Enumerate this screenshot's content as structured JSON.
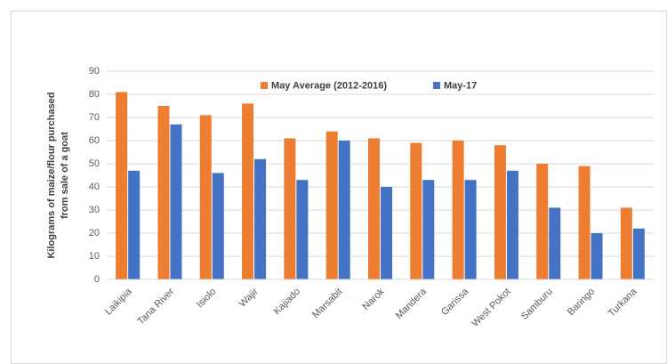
{
  "chart_data": {
    "type": "bar",
    "y_label": [
      "Kilograms of maize/flour purchased",
      "from sale of a goat"
    ],
    "categories": [
      "Laikipia",
      "Tana River",
      "Isiolo",
      "Wajir",
      "Kajiado",
      "Marsabit",
      "Narok",
      "Mandera",
      "Garissa",
      "West Pokot",
      "Samburu",
      "Baringo",
      "Turkana"
    ],
    "series": [
      {
        "name": "May Average (2012-2016)",
        "color": "#ed7d31",
        "values": [
          81,
          75,
          71,
          76,
          61,
          64,
          61,
          59,
          60,
          58,
          50,
          49,
          31
        ]
      },
      {
        "name": "May-17",
        "color": "#4472c4",
        "values": [
          47,
          67,
          46,
          52,
          43,
          60,
          40,
          43,
          43,
          47,
          31,
          20,
          22
        ]
      }
    ],
    "ylim": [
      0,
      90
    ],
    "yticks": [
      0,
      10,
      20,
      30,
      40,
      50,
      60,
      70,
      80,
      90
    ],
    "grid": true,
    "legend": "top"
  }
}
